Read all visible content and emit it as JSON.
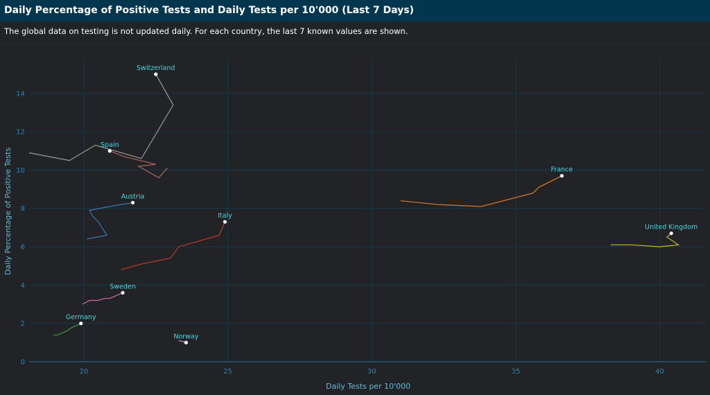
{
  "header": {
    "title": "Daily Percentage of Positive Tests and Daily Tests per 10'000 (Last 7 Days)"
  },
  "description": "The global data on testing is not updated daily. For each country, the last 7 known values are shown.",
  "colors": {
    "header_bg": "#02364f",
    "background": "#222326",
    "grid": "#15394a",
    "tick_text": "#2a86b8",
    "label_text": "#48d6e0"
  },
  "chart_data": {
    "type": "line",
    "xlabel": "Daily Tests per 10'000",
    "ylabel": "Daily Percentage of Positive Tests",
    "xlim": [
      18.1,
      41.6
    ],
    "ylim": [
      0,
      15.8
    ],
    "xticks": [
      20,
      25,
      30,
      35,
      40
    ],
    "yticks": [
      0,
      2,
      4,
      6,
      8,
      10,
      12,
      14
    ],
    "grid": true,
    "series": [
      {
        "name": "Switzerland",
        "color": "#9a9a9a",
        "x": [
          18.1,
          19.5,
          20.4,
          22.0,
          23.1,
          22.5
        ],
        "y": [
          10.9,
          10.5,
          11.3,
          10.6,
          13.4,
          15.0
        ]
      },
      {
        "name": "Spain",
        "color": "#a8655e",
        "x": [
          22.9,
          22.6,
          21.9,
          22.5,
          21.4,
          20.9
        ],
        "y": [
          10.1,
          9.6,
          10.2,
          10.3,
          10.7,
          11.0
        ]
      },
      {
        "name": "Austria",
        "color": "#3a78b5",
        "x": [
          20.1,
          20.8,
          20.5,
          20.3,
          20.2,
          20.9,
          21.7
        ],
        "y": [
          6.4,
          6.6,
          7.3,
          7.6,
          7.9,
          8.1,
          8.3
        ]
      },
      {
        "name": "Italy",
        "color": "#c0392b",
        "x": [
          21.3,
          22.0,
          23.0,
          23.3,
          24.0,
          24.7,
          24.9
        ],
        "y": [
          4.8,
          5.1,
          5.4,
          6.0,
          6.3,
          6.6,
          7.3
        ]
      },
      {
        "name": "Sweden",
        "color": "#d36ca6",
        "x": [
          19.95,
          20.2,
          20.5,
          20.7,
          20.9,
          21.2,
          21.35
        ],
        "y": [
          3.0,
          3.2,
          3.2,
          3.3,
          3.3,
          3.5,
          3.6
        ]
      },
      {
        "name": "Germany",
        "color": "#3c9c3a",
        "x": [
          18.95,
          19.1,
          19.4,
          19.6,
          19.85,
          19.9
        ],
        "y": [
          1.4,
          1.4,
          1.6,
          1.8,
          1.95,
          2.0
        ]
      },
      {
        "name": "Norway",
        "color": "#c98bd6",
        "x": [
          23.3,
          23.45,
          23.55
        ],
        "y": [
          1.1,
          1.05,
          1.0
        ]
      },
      {
        "name": "France",
        "color": "#d97a2b",
        "x": [
          31.0,
          32.3,
          33.8,
          35.6,
          35.8,
          36.6
        ],
        "y": [
          8.4,
          8.2,
          8.1,
          8.8,
          9.1,
          9.7
        ]
      },
      {
        "name": "United Kingdom",
        "color": "#c9b92a",
        "x": [
          38.3,
          39.0,
          40.0,
          40.65,
          40.25,
          40.4
        ],
        "y": [
          6.1,
          6.1,
          6.0,
          6.1,
          6.5,
          6.7
        ]
      }
    ]
  }
}
